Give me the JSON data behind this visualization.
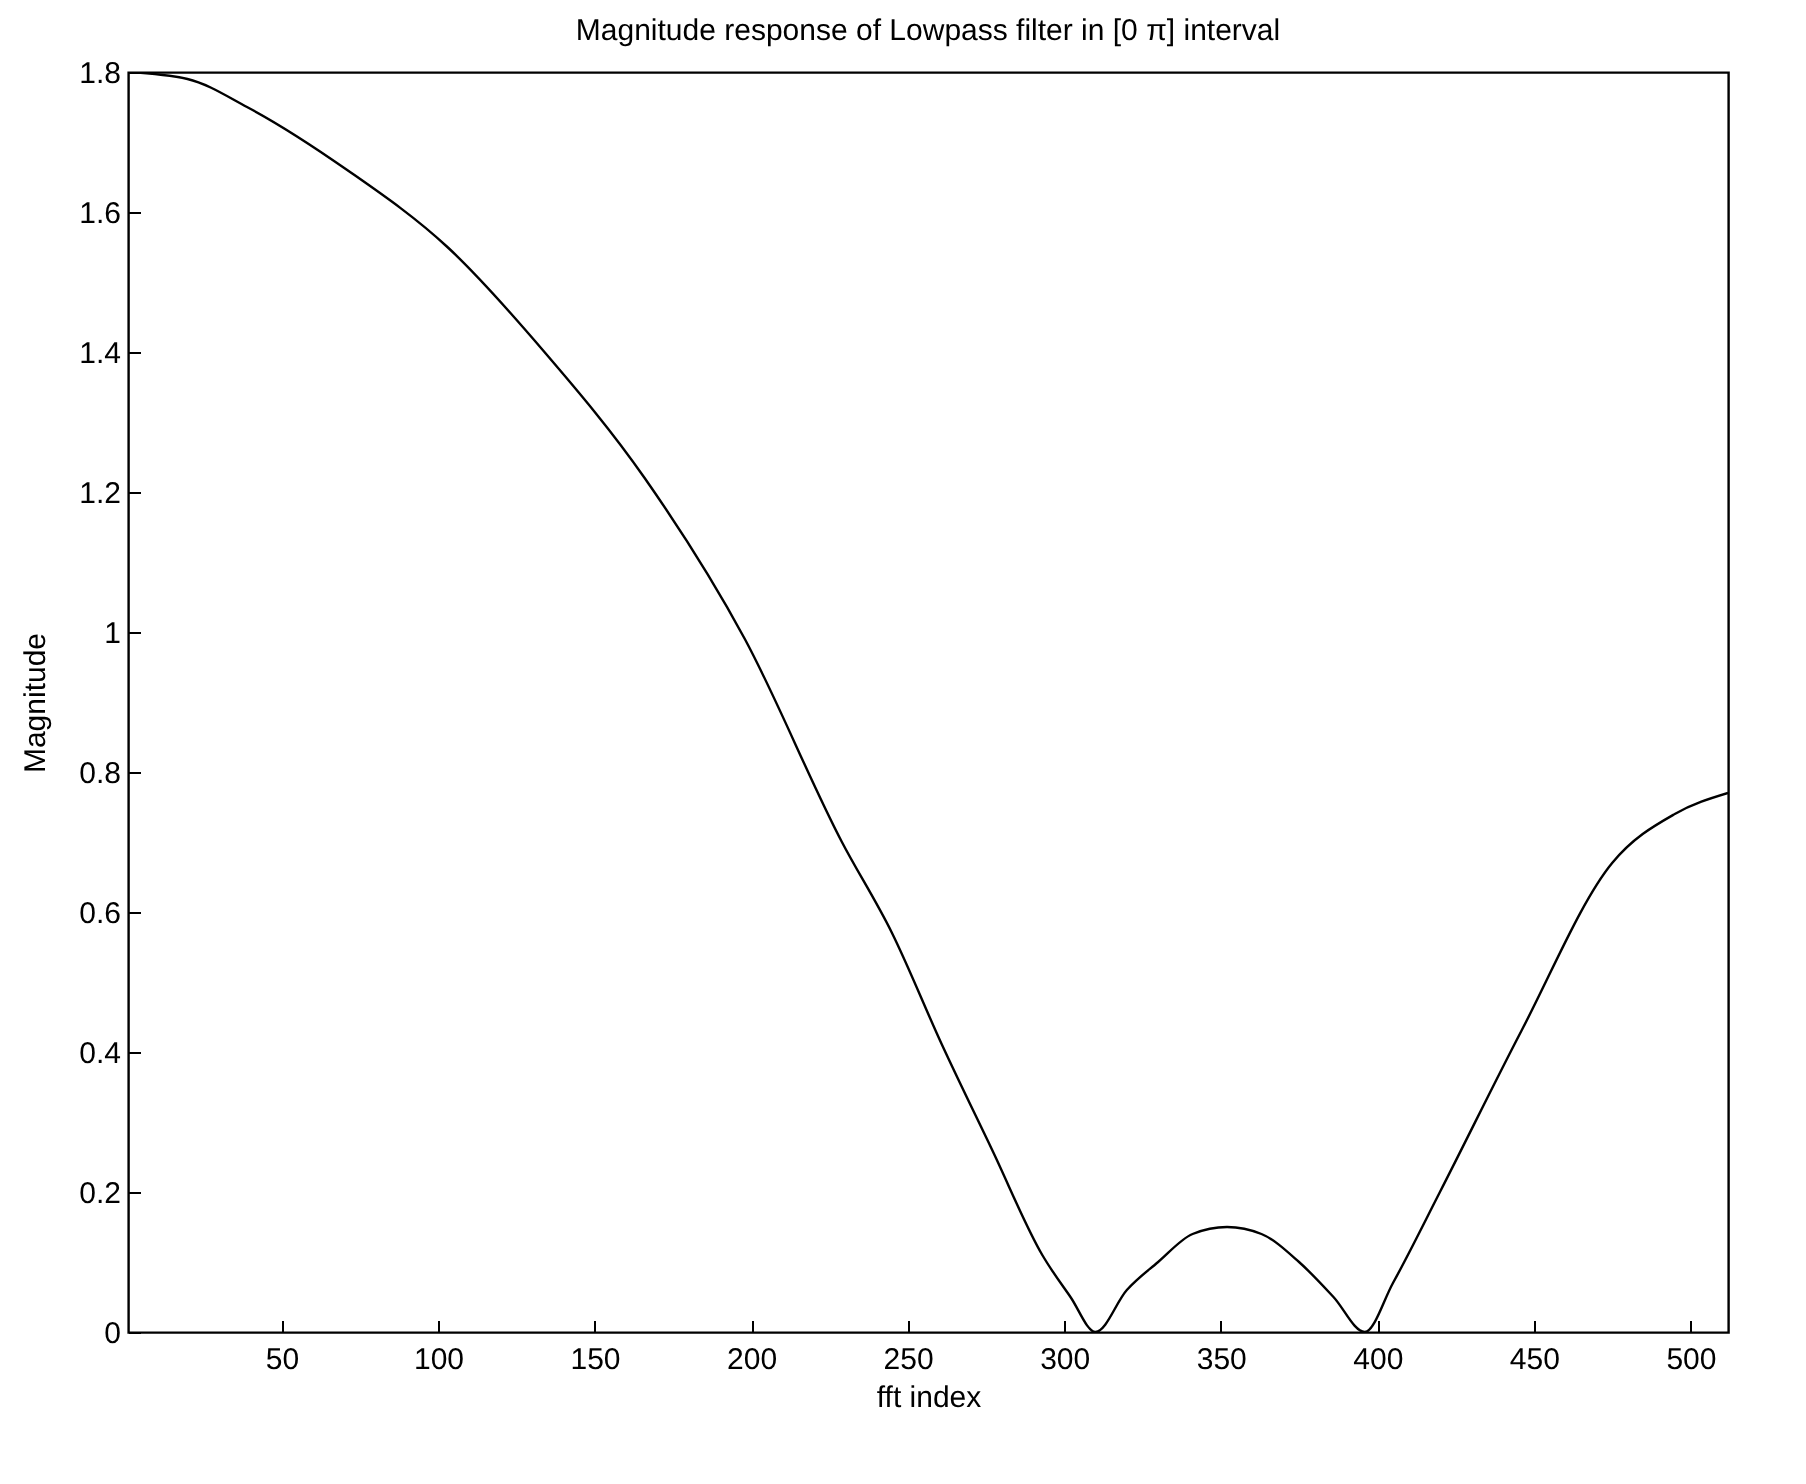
{
  "chart_data": {
    "type": "line",
    "title": "Magnitude response of Lowpass filter in [0 π] interval",
    "xlabel": "fft index",
    "ylabel": "Magnitude",
    "x": [
      1,
      20,
      39,
      71,
      103,
      134,
      166,
      198,
      229,
      245,
      261,
      277,
      293,
      302,
      310,
      320,
      330,
      341,
      352,
      363,
      375,
      386,
      396,
      405,
      420,
      446,
      475,
      495,
      512
    ],
    "series": [
      {
        "color": "#000000",
        "values": [
          1.8,
          1.79,
          1.75,
          1.66,
          1.55,
          1.4,
          1.22,
          0.99,
          0.7,
          0.57,
          0.41,
          0.26,
          0.11,
          0.05,
          0,
          0.06,
          0.1,
          0.14,
          0.15,
          0.14,
          0.1,
          0.05,
          0,
          0.07,
          0.2,
          0.43,
          0.67,
          0.74,
          0.77
        ]
      }
    ],
    "xlim": [
      1,
      512
    ],
    "xticks": [
      50,
      100,
      150,
      200,
      250,
      300,
      350,
      400,
      450,
      500
    ],
    "ylim": [
      0,
      1.8
    ],
    "yticks": [
      0,
      0.2,
      0.4,
      0.6,
      0.8,
      1,
      1.2,
      1.4,
      1.6,
      1.8
    ],
    "grid": false
  }
}
